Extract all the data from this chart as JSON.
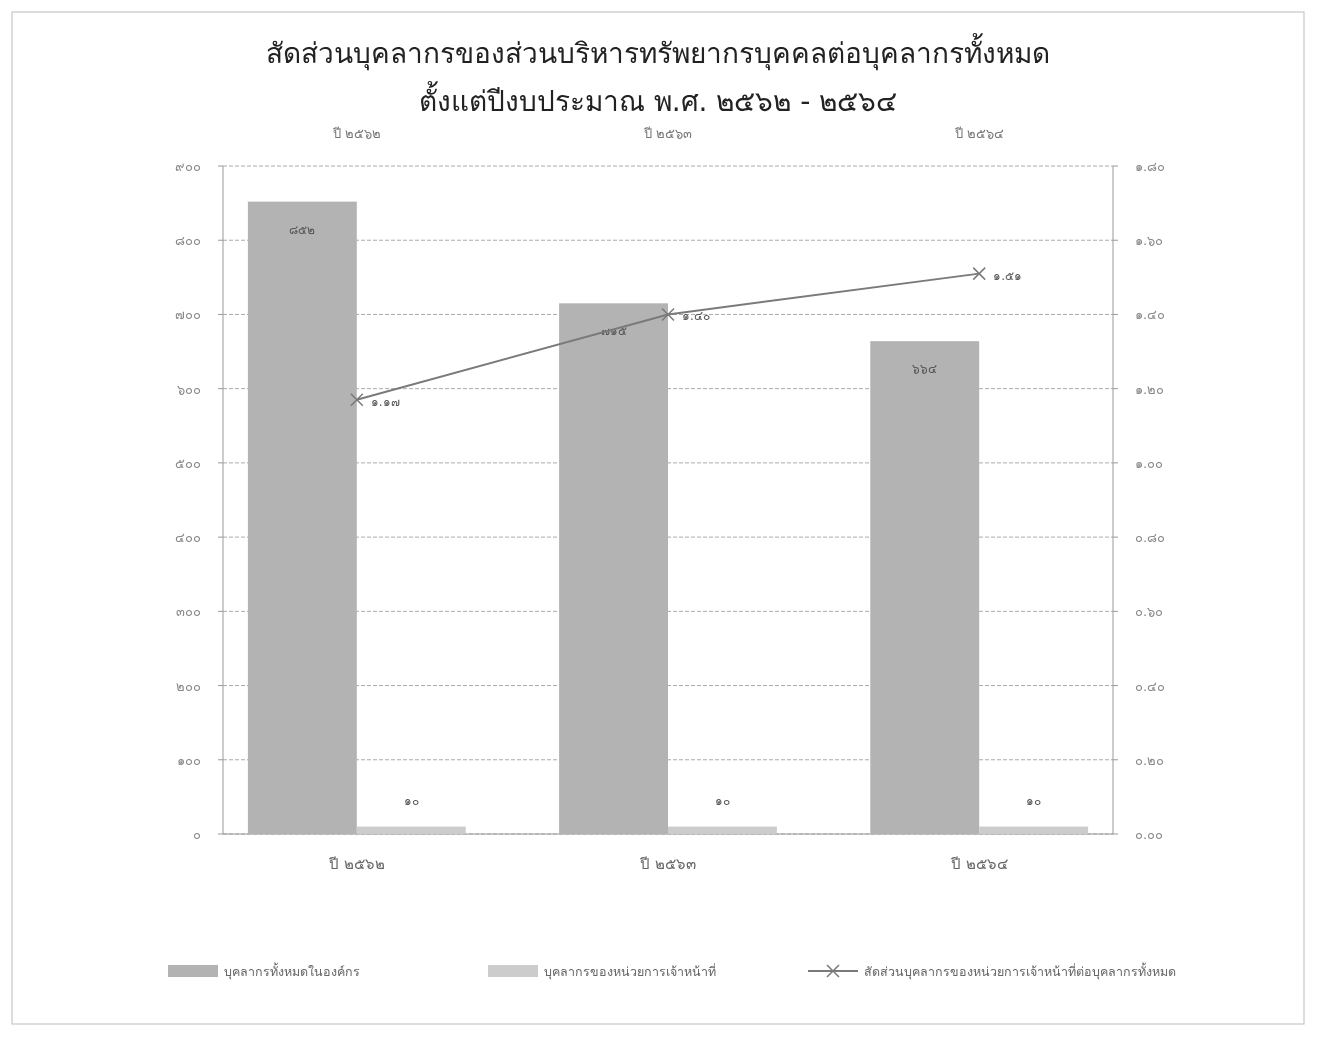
{
  "chart_data": {
    "type": "bar",
    "title": "สัดส่วนบุคลากรของส่วนบริหารทรัพยากรบุคคลต่อบุคลากรทั้งหมด",
    "subtitle": "ตั้งแต่ปีงบประมาณ พ.ศ. ๒๕๖๒ - ๒๕๖๔",
    "categories": [
      "ปี ๒๕๖๒",
      "ปี ๒๕๖๓",
      "ปี ๒๕๖๔"
    ],
    "series": [
      {
        "name": "บุคลากรทั้งหมดในองค์กร",
        "color": "#b3b3b3",
        "values": [
          852,
          715,
          664
        ],
        "value_labels": [
          "๘๕๒",
          "๗๑๕",
          "๖๖๔"
        ]
      },
      {
        "name": "บุคลากรของหน่วยการเจ้าหน้าที่",
        "color": "#cccccc",
        "values": [
          10,
          10,
          10
        ],
        "value_labels": [
          "๑๐",
          "๑๐",
          "๑๐"
        ]
      },
      {
        "name": "สัดส่วนบุคลากรของหน่วยการเจ้าหน้าที่ต่อบุคลากรทั้งหมด",
        "type": "line",
        "axis": "y2",
        "color": "#7a7a7a",
        "marker": "cross",
        "values": [
          1.17,
          1.4,
          1.51
        ],
        "value_labels": [
          "๑.๑๗",
          "๑.๔๐",
          "๑.๕๑"
        ]
      }
    ],
    "annotations": [
      "ปี ๒๕๖๒",
      "ปี ๒๕๖๓",
      "ปี ๒๕๖๔"
    ],
    "ylim": [
      0,
      900
    ],
    "yticks": [
      {
        "value": 0,
        "label": "๐"
      },
      {
        "value": 100,
        "label": "๑๐๐"
      },
      {
        "value": 200,
        "label": "๒๐๐"
      },
      {
        "value": 300,
        "label": "๓๐๐"
      },
      {
        "value": 400,
        "label": "๔๐๐"
      },
      {
        "value": 500,
        "label": "๕๐๐"
      },
      {
        "value": 600,
        "label": "๖๐๐"
      },
      {
        "value": 700,
        "label": "๗๐๐"
      },
      {
        "value": 800,
        "label": "๘๐๐"
      },
      {
        "value": 900,
        "label": "๙๐๐"
      }
    ],
    "y2lim": [
      0,
      1.8
    ],
    "y2ticks": [
      {
        "value": 0,
        "label": "๐.๐๐"
      },
      {
        "value": 0.2,
        "label": "๐.๒๐"
      },
      {
        "value": 0.4,
        "label": "๐.๔๐"
      },
      {
        "value": 0.6,
        "label": "๐.๖๐"
      },
      {
        "value": 0.8,
        "label": "๐.๘๐"
      },
      {
        "value": 1,
        "label": "๑.๐๐"
      },
      {
        "value": 1.2,
        "label": "๑.๒๐"
      },
      {
        "value": 1.4,
        "label": "๑.๔๐"
      },
      {
        "value": 1.6,
        "label": "๑.๖๐"
      },
      {
        "value": 1.8,
        "label": "๑.๘๐"
      }
    ],
    "grid": "y",
    "legend": "bottom"
  }
}
